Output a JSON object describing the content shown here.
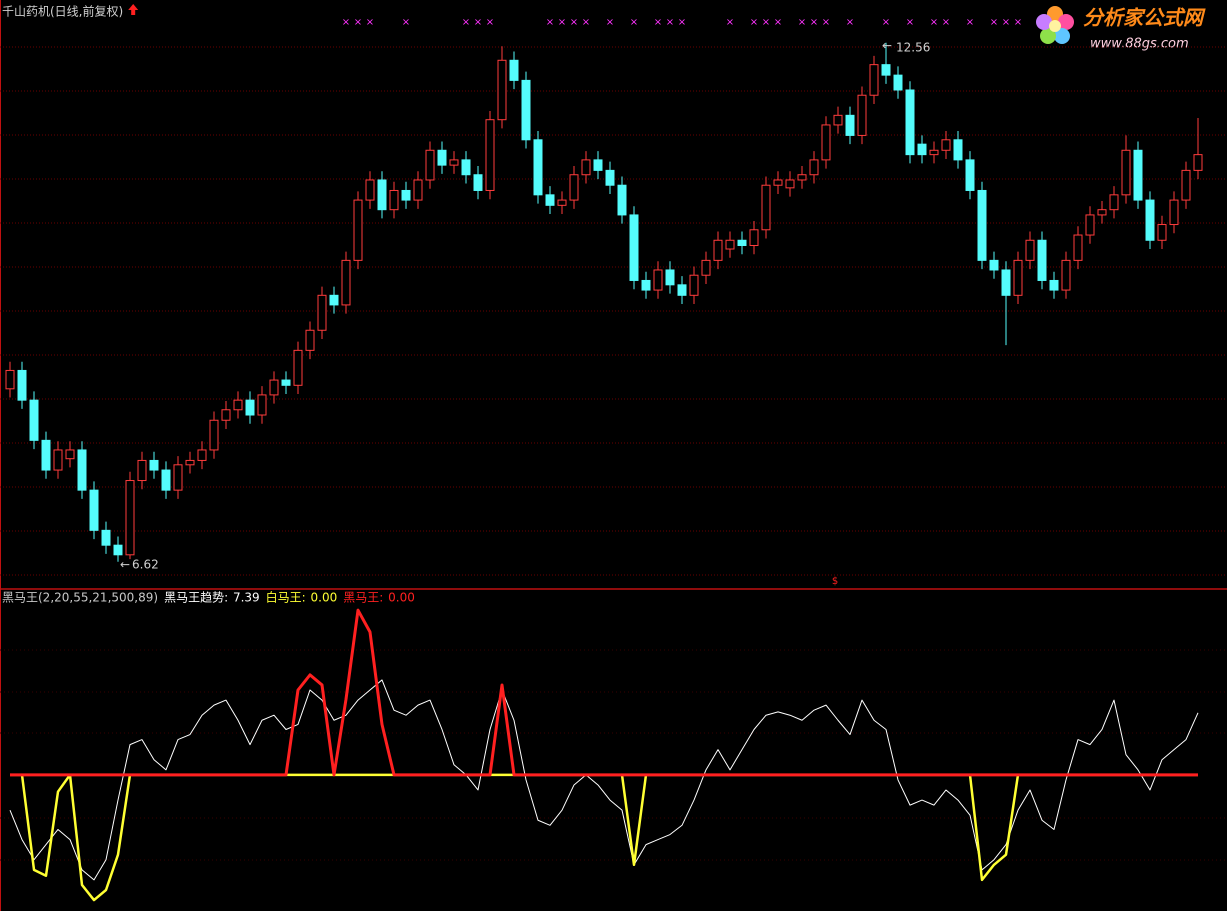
{
  "header": {
    "logo_title": "分析家公式网",
    "logo_url": "www.88gs.com"
  },
  "chart_data": [
    {
      "type": "candlestick",
      "title": "千山药机(日线,前复权)",
      "open": [
        8.6,
        8.81,
        8.47,
        8.01,
        7.67,
        7.8,
        7.9,
        7.44,
        6.98,
        6.81,
        6.7,
        7.55,
        7.78,
        7.67,
        7.44,
        7.73,
        7.78,
        7.9,
        8.24,
        8.36,
        8.47,
        8.3,
        8.53,
        8.7,
        8.64,
        9.04,
        9.27,
        9.67,
        9.56,
        10.07,
        10.76,
        10.99,
        10.65,
        10.87,
        10.76,
        10.99,
        11.33,
        11.16,
        11.22,
        11.05,
        10.87,
        11.68,
        12.36,
        12.13,
        11.45,
        10.82,
        10.7,
        10.76,
        11.05,
        11.22,
        11.1,
        10.93,
        10.59,
        9.84,
        9.73,
        9.96,
        9.79,
        9.67,
        9.9,
        10.07,
        10.2,
        10.3,
        10.24,
        10.42,
        10.93,
        10.9,
        10.99,
        11.05,
        11.22,
        11.62,
        11.73,
        11.5,
        11.96,
        12.31,
        12.19,
        12.02,
        11.4,
        11.28,
        11.33,
        11.45,
        11.22,
        10.87,
        10.07,
        9.96,
        9.67,
        10.07,
        10.3,
        9.84,
        9.73,
        10.07,
        10.36,
        10.59,
        10.65,
        10.82,
        11.33,
        10.76,
        10.3,
        10.48,
        10.76,
        11.1
      ],
      "high": [
        8.91,
        8.91,
        8.57,
        8.11,
        8.0,
        8.0,
        8.0,
        7.54,
        7.08,
        6.91,
        7.65,
        7.88,
        7.88,
        7.77,
        7.83,
        7.88,
        8.0,
        8.34,
        8.46,
        8.57,
        8.57,
        8.63,
        8.8,
        8.8,
        9.14,
        9.37,
        9.77,
        9.77,
        10.17,
        10.86,
        11.09,
        11.09,
        10.97,
        10.97,
        11.09,
        11.43,
        11.43,
        11.32,
        11.32,
        11.15,
        11.78,
        12.52,
        12.46,
        12.23,
        11.55,
        10.92,
        10.86,
        11.15,
        11.32,
        11.32,
        11.2,
        11.03,
        10.69,
        9.94,
        10.06,
        10.06,
        9.89,
        10.0,
        10.17,
        10.4,
        10.4,
        10.4,
        10.52,
        11.03,
        11.09,
        11.09,
        11.15,
        11.32,
        11.72,
        11.83,
        11.83,
        12.06,
        12.41,
        12.56,
        12.29,
        12.12,
        11.5,
        11.43,
        11.55,
        11.55,
        11.32,
        10.97,
        10.17,
        10.06,
        10.17,
        10.4,
        10.4,
        9.94,
        10.17,
        10.46,
        10.69,
        10.75,
        10.92,
        11.5,
        11.43,
        10.86,
        10.58,
        10.86,
        11.2,
        11.7
      ],
      "low": [
        8.5,
        8.37,
        7.91,
        7.57,
        7.57,
        7.7,
        7.34,
        6.88,
        6.71,
        6.62,
        6.65,
        7.45,
        7.57,
        7.34,
        7.34,
        7.63,
        7.68,
        7.8,
        8.14,
        8.26,
        8.2,
        8.2,
        8.43,
        8.54,
        8.54,
        8.94,
        9.17,
        9.46,
        9.46,
        9.97,
        10.66,
        10.55,
        10.55,
        10.66,
        10.66,
        10.89,
        11.06,
        11.06,
        10.95,
        10.77,
        10.77,
        11.58,
        12.03,
        11.35,
        10.72,
        10.6,
        10.6,
        10.66,
        10.95,
        11.0,
        10.83,
        10.49,
        9.74,
        9.63,
        9.63,
        9.69,
        9.57,
        9.57,
        9.8,
        9.97,
        10.1,
        10.14,
        10.14,
        10.32,
        10.83,
        10.8,
        10.89,
        10.95,
        11.12,
        11.52,
        11.4,
        11.4,
        11.86,
        12.09,
        11.92,
        11.18,
        11.18,
        11.18,
        11.23,
        11.12,
        10.77,
        9.97,
        9.86,
        9.1,
        9.57,
        9.97,
        9.74,
        9.63,
        9.63,
        9.97,
        10.26,
        10.49,
        10.55,
        10.72,
        10.66,
        10.2,
        10.2,
        10.38,
        10.66,
        11.0
      ],
      "close": [
        8.81,
        8.47,
        8.01,
        7.67,
        7.9,
        7.9,
        7.44,
        6.98,
        6.81,
        6.7,
        7.55,
        7.78,
        7.67,
        7.44,
        7.73,
        7.78,
        7.9,
        8.24,
        8.36,
        8.47,
        8.3,
        8.53,
        8.7,
        8.64,
        9.04,
        9.27,
        9.67,
        9.56,
        10.07,
        10.76,
        10.99,
        10.65,
        10.87,
        10.76,
        10.99,
        11.33,
        11.16,
        11.22,
        11.05,
        10.87,
        11.68,
        12.36,
        12.13,
        11.45,
        10.82,
        10.7,
        10.76,
        11.05,
        11.22,
        11.1,
        10.93,
        10.59,
        9.84,
        9.73,
        9.96,
        9.79,
        9.67,
        9.9,
        10.07,
        10.3,
        10.3,
        10.24,
        10.42,
        10.93,
        10.99,
        10.99,
        11.05,
        11.22,
        11.62,
        11.73,
        11.5,
        11.96,
        12.31,
        12.19,
        12.02,
        11.28,
        11.28,
        11.33,
        11.45,
        11.22,
        10.87,
        10.07,
        9.96,
        9.67,
        10.07,
        10.3,
        9.84,
        9.73,
        10.07,
        10.36,
        10.59,
        10.65,
        10.82,
        11.33,
        10.76,
        10.3,
        10.48,
        10.76,
        11.1,
        11.28
      ],
      "up_color": "#ff3c3c",
      "down_color": "#54fcfc",
      "ylim": [
        6.32,
        13.05
      ],
      "grid": true,
      "signals": {
        "marker": "×",
        "color": "#ff33ff",
        "indices": [
          28,
          29,
          30,
          33,
          38,
          39,
          40,
          45,
          46,
          47,
          48,
          50,
          52,
          54,
          55,
          56,
          60,
          62,
          63,
          64,
          66,
          67,
          68,
          70,
          73,
          75,
          77,
          78,
          80,
          82,
          83,
          84
        ]
      },
      "bottom_marker": "$"
    },
    {
      "type": "line",
      "title": "黑马王(2,20,55,21,500,89)",
      "legend_separator": ": ",
      "ylim": [
        -16.2,
        22.0
      ],
      "series": [
        {
          "name": "黑马王趋势",
          "color": "#ffffff",
          "legend_label": "7.39",
          "values": [
            -4.2,
            -7.7,
            -10.1,
            -8.3,
            -6.5,
            -7.7,
            -11.3,
            -12.5,
            -10.1,
            -3.0,
            3.6,
            4.2,
            1.8,
            0.6,
            4.2,
            4.8,
            7.1,
            8.3,
            8.9,
            6.5,
            3.6,
            6.5,
            7.1,
            5.4,
            6.0,
            10.1,
            8.9,
            6.5,
            7.1,
            8.9,
            10.1,
            11.3,
            7.7,
            7.1,
            8.3,
            8.9,
            5.4,
            1.2,
            0,
            -1.8,
            5.4,
            10.1,
            6.5,
            -0.6,
            -5.4,
            -6.0,
            -4.2,
            -1.2,
            0,
            -1.2,
            -3.0,
            -4.2,
            -10.7,
            -8.3,
            -7.7,
            -7.1,
            -6.0,
            -3.0,
            0.6,
            3.0,
            0.6,
            3.0,
            5.4,
            7.1,
            7.5,
            7.1,
            6.5,
            7.7,
            8.3,
            6.5,
            4.8,
            8.9,
            6.5,
            5.4,
            -0.6,
            -3.6,
            -3.0,
            -3.6,
            -1.8,
            -3.0,
            -4.8,
            -11.3,
            -10.1,
            -8.3,
            -4.2,
            -1.8,
            -5.4,
            -6.5,
            -0.6,
            4.2,
            3.6,
            5.4,
            8.9,
            2.4,
            0.6,
            -1.8,
            1.8,
            3.0,
            4.2,
            7.39
          ]
        },
        {
          "name": "白马王",
          "color": "#ffff33",
          "legend_label": "0.00",
          "values": [
            0,
            0,
            -11.3,
            -12.0,
            -2.0,
            0,
            -13.1,
            -14.9,
            -13.7,
            -9.5,
            0,
            0,
            0,
            0,
            0,
            0,
            0,
            0,
            0,
            0,
            0,
            0,
            0,
            0,
            0,
            0,
            0,
            0,
            0,
            0,
            0,
            0,
            0,
            0,
            0,
            0,
            0,
            0,
            0,
            0,
            0,
            0,
            0,
            0,
            0,
            0,
            0,
            0,
            0,
            0,
            0,
            0,
            -10.7,
            0,
            0,
            0,
            0,
            0,
            0,
            0,
            0,
            0,
            0,
            0,
            0,
            0,
            0,
            0,
            0,
            0,
            0,
            0,
            0,
            0,
            0,
            0,
            0,
            0,
            0,
            0,
            0,
            -12.5,
            -10.7,
            -9.5,
            0,
            0,
            0,
            0,
            0,
            0,
            0,
            0,
            0,
            0,
            0,
            0,
            0,
            0,
            0,
            0
          ]
        },
        {
          "name": "黑马王",
          "color": "#ff2020",
          "legend_label": "0.00",
          "values": [
            0,
            0,
            0,
            0,
            0,
            0,
            0,
            0,
            0,
            0,
            0,
            0,
            0,
            0,
            0,
            0,
            0,
            0,
            0,
            0,
            0,
            0,
            0,
            0,
            10.1,
            11.9,
            10.7,
            0,
            9.0,
            19.6,
            17.0,
            6.0,
            0,
            0,
            0,
            0,
            0,
            0,
            0,
            0,
            0,
            10.7,
            0,
            0,
            0,
            0,
            0,
            0,
            0,
            0,
            0,
            0,
            0,
            0,
            0,
            0,
            0,
            0,
            0,
            0,
            0,
            0,
            0,
            0,
            0,
            0,
            0,
            0,
            0,
            0,
            0,
            0,
            0,
            0,
            0,
            0,
            0,
            0,
            0,
            0,
            0,
            0,
            0,
            0,
            0,
            0,
            0,
            0,
            0,
            0,
            0,
            0,
            0,
            0,
            0,
            0,
            0,
            0,
            0,
            0
          ]
        }
      ]
    }
  ]
}
